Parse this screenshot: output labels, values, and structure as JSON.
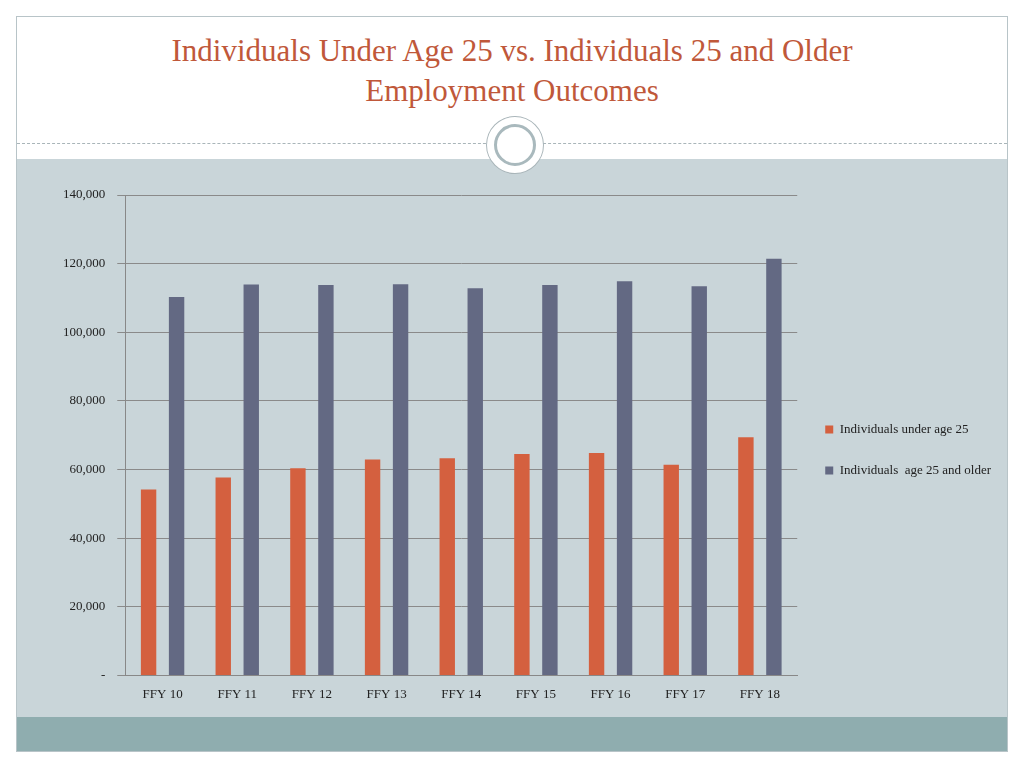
{
  "chart_data": {
    "type": "bar",
    "title": "Individuals Under Age 25 vs. Individuals 25 and Older Employment Outcomes",
    "categories": [
      "FFY 10",
      "FFY 11",
      "FFY 12",
      "FFY 13",
      "FFY 14",
      "FFY 15",
      "FFY 16",
      "FFY 17",
      "FFY 18"
    ],
    "series": [
      {
        "name": "Individuals under age 25",
        "color": "#d4603f",
        "values": [
          54200,
          57700,
          60400,
          62900,
          63300,
          64500,
          64800,
          61400,
          69400
        ]
      },
      {
        "name": "Individuals  age 25 and older",
        "color": "#636983",
        "values": [
          110300,
          113900,
          113800,
          114000,
          112800,
          113800,
          114900,
          113400,
          121400
        ]
      }
    ],
    "ylim": [
      0,
      140000
    ],
    "yticks": [
      {
        "value": 0,
        "label": "-"
      },
      {
        "value": 20000,
        "label": "20,000"
      },
      {
        "value": 40000,
        "label": "40,000"
      },
      {
        "value": 60000,
        "label": "60,000"
      },
      {
        "value": 80000,
        "label": "80,000"
      },
      {
        "value": 100000,
        "label": "100,000"
      },
      {
        "value": 120000,
        "label": "120,000"
      },
      {
        "value": 140000,
        "label": "140,000"
      }
    ],
    "grid": true,
    "legend": "right"
  }
}
